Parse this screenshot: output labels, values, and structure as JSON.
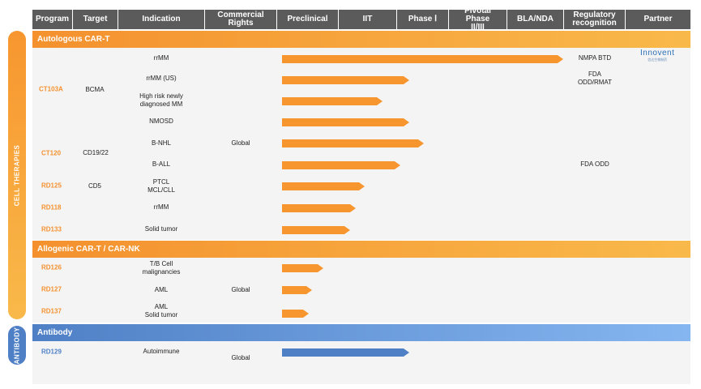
{
  "headers": [
    "Program",
    "Target",
    "Indication",
    "Commercial Rights",
    "Preclinical",
    "IIT",
    "Phase Ⅰ",
    "Pivotal Phase II/III",
    "BLA/NDA",
    "Regulatory recognition",
    "Partner"
  ],
  "side_labels": {
    "cell_therapies": "CELL THERAPIES",
    "antibody": "ANTIBODY"
  },
  "sections": {
    "autologous": "Autologous CAR-T",
    "allogenic": "Allogenic CAR-T / CAR-NK",
    "antibody": "Antibody"
  },
  "programs": {
    "ct103a": "CT103A",
    "ct120": "CT120",
    "rd125": "RD125",
    "rd118": "RD118",
    "rd133": "RD133",
    "rd126": "RD126",
    "rd127": "RD127",
    "rd137": "RD137",
    "rd129": "RD129"
  },
  "targets": {
    "bcma": "BCMA",
    "cd19_22": "CD19/22",
    "cd5": "CD5"
  },
  "indications": {
    "rrmm1": "rrMM",
    "rrmm_us": "rrMM (US)",
    "hr_ndmm": "High risk newly\ndiagnosed MM",
    "nmosd": "NMOSD",
    "bnhl": "B-NHL",
    "ball": "B-ALL",
    "ptcl": "PTCL\nMCL/CLL",
    "rrmm2": "rrMM",
    "solid": "Solid tumor",
    "tb": "T/B Cell\nmalignancies",
    "aml": "AML",
    "aml_solid": "AML\nSolid tumor",
    "autoimmune": "Autoimmune"
  },
  "rights": {
    "global1": "Global",
    "global2": "Global",
    "global3": "Global"
  },
  "regulatory": {
    "nmpa": "NMPA BTD",
    "fda_odd_rmat": "FDA\nODD/RMAT",
    "fda_odd": "FDA ODD"
  },
  "partner": {
    "logo_name": "Innovent",
    "logo_sub": "信达生物制药"
  },
  "progress_scale_note_stages": [
    "Preclinical",
    "IIT",
    "Phase Ⅰ",
    "Pivotal Phase II/III",
    "BLA/NDA"
  ],
  "chart_data": {
    "type": "bar",
    "categories": [
      "rrMM",
      "rrMM (US)",
      "High risk newly diagnosed MM",
      "NMOSD",
      "B-NHL",
      "B-ALL",
      "PTCL MCL/CLL",
      "rrMM",
      "Solid tumor",
      "T/B Cell malignancies",
      "AML",
      "AML Solid tumor",
      "Autoimmune"
    ],
    "stages": [
      "Preclinical",
      "IIT",
      "Phase Ⅰ",
      "Pivotal Phase II/III",
      "BLA/NDA"
    ],
    "values": [
      4.75,
      2.15,
      1.7,
      2.15,
      2.4,
      2.0,
      1.4,
      1.25,
      1.15,
      0.7,
      0.5,
      0.45,
      2.15
    ],
    "colors": {
      "orange": "#f7962f",
      "blue": "#4f80c6"
    }
  }
}
